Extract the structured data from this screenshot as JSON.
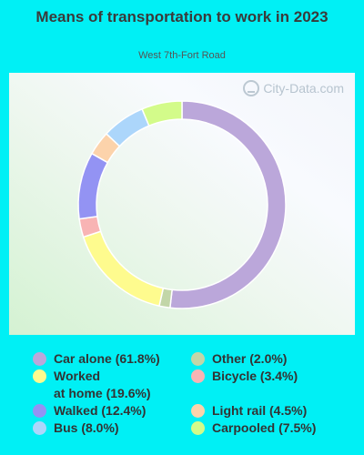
{
  "title": "Means of transportation to work in 2023",
  "subtitle": "West 7th-Fort Road",
  "watermark": "City-Data.com",
  "chart_data": {
    "type": "pie",
    "donut": true,
    "title": "Means of transportation to work in 2023",
    "subtitle": "West 7th-Fort Road",
    "slices": [
      {
        "label": "Car alone",
        "value": 61.8,
        "color": "#bba7da",
        "legend": "Car alone (61.8%)"
      },
      {
        "label": "Other",
        "value": 2.0,
        "color": "#c2d6a8",
        "legend": "Other (2.0%)"
      },
      {
        "label": "Worked at home",
        "value": 19.6,
        "color": "#fefb8e",
        "legend": "Worked\nat home (19.6%)"
      },
      {
        "label": "Bicycle",
        "value": 3.4,
        "color": "#f8b4b4",
        "legend": "Bicycle (3.4%)"
      },
      {
        "label": "Walked",
        "value": 12.4,
        "color": "#9393f3",
        "legend": "Walked (12.4%)"
      },
      {
        "label": "Light rail",
        "value": 4.5,
        "color": "#fcd3ab",
        "legend": "Light rail (4.5%)"
      },
      {
        "label": "Bus",
        "value": 8.0,
        "color": "#acd6fb",
        "legend": "Bus (8.0%)"
      },
      {
        "label": "Carpooled",
        "value": 7.5,
        "color": "#d3fb8a",
        "legend": "Carpooled (7.5%)"
      }
    ],
    "legend_position": "bottom"
  }
}
